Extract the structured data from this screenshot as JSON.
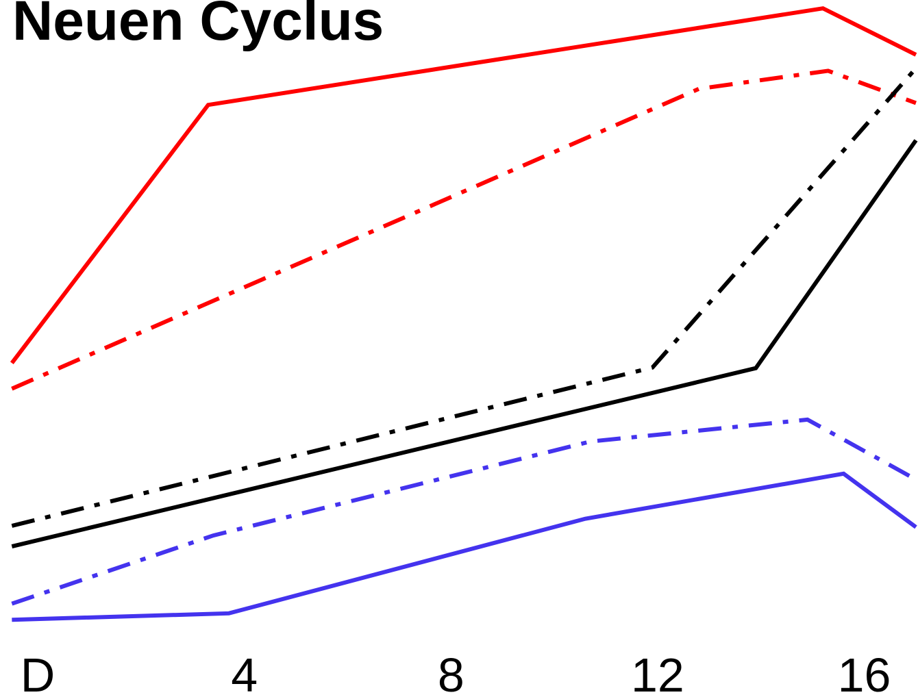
{
  "chart_data": {
    "type": "line",
    "title": "Neuen Cyclus",
    "xlim": [
      -0.73,
      17.04
    ],
    "ylim": [
      0,
      100
    ],
    "xticks": [
      {
        "value": 0,
        "label": "D"
      },
      4,
      8,
      12,
      16
    ],
    "series": [
      {
        "color": "#ff0000",
        "dash": "solid",
        "x": [
          -0.5,
          3.3,
          15.2,
          17
        ],
        "values": [
          43.6,
          83.7,
          98.7,
          91.5
        ]
      },
      {
        "color": "#ff0000",
        "dash": "dashdot",
        "x": [
          -0.5,
          12.8,
          15.3,
          17
        ],
        "values": [
          39.6,
          86.2,
          89,
          84
        ]
      },
      {
        "color": "#000000",
        "dash": "solid",
        "x": [
          -0.5,
          13.9,
          17
        ],
        "values": [
          15.1,
          42.8,
          78.2
        ]
      },
      {
        "color": "#000000",
        "dash": "dashdot",
        "x": [
          -0.5,
          11.9,
          17
        ],
        "values": [
          18.3,
          42.9,
          89.4
        ]
      },
      {
        "color": "#4433ee",
        "dash": "solid",
        "x": [
          -0.5,
          3.7,
          10.6,
          15.6,
          17
        ],
        "values": [
          3.7,
          4.7,
          19.4,
          26.4,
          18.1
        ]
      },
      {
        "color": "#4433ee",
        "dash": "dashdot",
        "x": [
          -0.5,
          3.4,
          10.7,
          14.9,
          17
        ],
        "values": [
          6.2,
          16.8,
          31.4,
          34.8,
          25.5
        ]
      }
    ]
  }
}
